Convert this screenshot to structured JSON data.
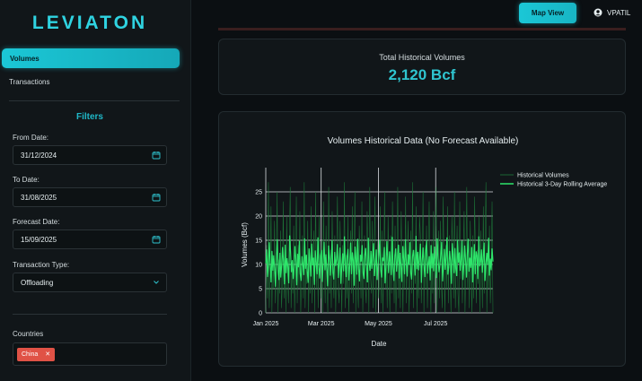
{
  "app": {
    "logo": "LEVIATON"
  },
  "sidebar": {
    "nav": [
      {
        "label": "Volumes",
        "active": true
      },
      {
        "label": "Transactions",
        "active": false
      }
    ],
    "filters_title": "Filters",
    "from_date": {
      "label": "From Date:",
      "value": "31/12/2024"
    },
    "to_date": {
      "label": "To Date:",
      "value": "31/08/2025"
    },
    "forecast_date": {
      "label": "Forecast Date:",
      "value": "15/09/2025"
    },
    "transaction_type": {
      "label": "Transaction Type:",
      "value": "Offloading"
    },
    "countries": {
      "label": "Countries",
      "tags": [
        "China"
      ]
    }
  },
  "header": {
    "map_view_label": "Map View",
    "user": "VPATIL"
  },
  "metric": {
    "title": "Total Historical Volumes",
    "value": "2,120 Bcf"
  },
  "chart_data": {
    "type": "line",
    "title": "Volumes Historical Data (No Forecast Available)",
    "xlabel": "Date",
    "ylabel": "Volumes (Bcf)",
    "x_ticks": [
      "Jan 2025",
      "Mar 2025",
      "May 2025",
      "Jul 2025"
    ],
    "y_ticks": [
      0,
      5,
      10,
      15,
      20,
      25
    ],
    "ylim": [
      0,
      30
    ],
    "x_range": [
      "2025-01-01",
      "2025-08-31"
    ],
    "legend_position": "right",
    "series": [
      {
        "name": "Historical Volumes",
        "color": "#1e7a3a",
        "values": [
          0,
          14,
          3,
          27,
          1,
          9,
          22,
          0,
          12,
          5,
          19,
          2,
          8,
          25,
          0,
          11,
          4,
          17,
          1,
          6,
          23,
          3,
          13,
          0,
          20,
          7,
          2,
          15,
          26,
          1,
          10,
          4,
          18,
          0,
          9,
          24,
          2,
          14,
          5,
          21,
          0,
          8,
          16,
          3,
          27,
          1,
          11,
          6,
          19,
          0,
          13,
          4,
          22,
          2,
          9,
          17,
          0,
          25,
          5,
          12,
          1,
          20,
          7,
          3,
          15,
          0,
          23,
          10,
          2,
          18,
          6,
          0,
          26,
          4,
          13,
          1,
          21,
          8,
          3,
          16,
          0,
          11,
          24,
          5,
          2,
          19,
          9,
          0,
          14,
          6,
          27,
          1,
          12,
          3,
          20,
          0,
          8,
          17,
          4,
          22,
          2,
          10,
          25,
          0,
          15,
          6,
          1,
          18,
          11,
          3,
          23,
          0,
          9,
          16,
          5,
          2,
          21,
          13,
          0,
          26,
          7,
          4,
          19,
          1,
          12,
          24,
          0,
          10,
          15,
          3,
          6,
          22,
          2,
          17,
          0,
          9,
          25,
          5,
          13,
          1,
          20,
          8,
          0,
          16,
          4,
          23,
          11,
          2,
          18,
          0,
          7,
          26,
          3,
          14,
          1,
          21,
          10,
          0,
          15,
          5,
          24,
          2,
          12,
          19,
          0,
          8,
          17,
          4,
          27,
          1,
          13,
          6,
          22,
          0,
          11,
          3,
          20,
          16,
          2,
          9,
          25,
          0,
          14,
          5,
          18,
          1,
          10,
          23,
          7,
          0,
          15,
          4,
          21,
          2,
          12,
          26,
          0,
          9,
          17,
          3,
          19,
          6,
          1,
          24,
          11,
          0,
          14,
          5,
          22,
          2,
          16,
          8,
          0,
          20,
          13,
          3,
          25,
          1,
          10,
          18,
          4,
          0,
          23,
          7,
          15,
          2,
          12,
          21,
          0,
          9,
          26,
          5,
          14,
          1,
          19,
          8,
          0,
          16,
          3,
          24,
          11,
          2,
          13,
          6,
          20,
          0,
          17,
          10,
          1,
          22,
          4,
          15,
          27,
          0,
          12,
          5,
          18,
          2,
          9,
          23,
          0
        ],
        "rolling_avg": [
          10.2,
          13.1,
          7.4,
          9.8,
          14.6,
          10.1,
          6.3,
          12.8,
          8.7,
          11.9,
          9.2,
          5.4,
          11.5,
          15.2,
          8.9,
          6.8,
          12.4,
          7.3,
          9.9,
          13.6,
          10.8,
          5.9,
          14.1,
          8.2,
          11.3,
          9.6,
          6.1,
          16.0,
          12.7,
          8.4,
          10.9,
          7.0,
          9.3,
          13.8,
          11.1,
          5.7,
          12.2,
          9.4,
          14.9,
          8.1,
          6.6,
          11.7,
          10.0,
          7.8,
          15.4,
          9.1,
          12.0,
          8.5,
          6.2,
          13.3,
          10.6,
          7.5,
          14.3,
          9.8,
          11.4,
          5.8,
          12.9,
          10.3,
          8.0,
          15.6,
          9.5,
          7.1,
          11.8,
          13.0,
          6.4,
          10.5,
          14.7,
          8.8,
          12.1,
          9.0,
          5.5,
          13.9,
          11.2,
          7.7,
          10.7,
          15.0,
          8.3,
          6.9,
          12.6,
          9.7,
          11.0,
          14.2,
          7.2,
          10.4,
          13.5,
          6.0,
          9.6,
          12.3,
          8.6,
          15.8,
          10.1,
          7.4,
          11.6,
          13.2,
          6.7,
          9.9,
          14.5,
          8.0,
          12.5,
          10.8,
          5.6,
          13.7,
          11.3,
          7.9,
          15.3,
          9.2,
          6.5,
          12.0,
          10.6,
          14.0,
          8.4,
          7.0,
          11.9,
          13.4,
          9.4,
          6.3,
          15.5,
          10.2,
          8.7,
          12.8,
          9.1,
          11.5,
          14.4,
          7.6,
          10.0,
          13.1,
          6.8,
          9.8,
          12.2,
          15.1,
          8.9,
          7.3,
          11.4,
          10.7,
          13.6,
          6.1,
          9.5,
          14.8,
          11.0,
          8.2,
          12.7,
          10.4,
          7.8,
          15.7,
          9.3,
          6.6,
          11.8,
          13.3,
          8.5,
          10.9,
          14.1,
          7.1,
          12.4,
          9.7,
          6.4,
          13.8,
          11.2,
          8.0,
          15.2,
          10.3,
          7.5,
          12.1,
          9.9,
          14.6,
          8.3,
          6.9,
          11.6,
          13.0,
          10.5,
          7.7,
          15.9,
          9.0,
          12.6,
          8.8,
          11.1,
          14.3,
          6.2,
          10.8,
          13.5,
          9.6,
          7.4,
          12.9,
          15.0,
          8.1,
          10.2,
          11.7,
          6.7,
          14.0,
          9.2,
          12.3,
          8.6,
          13.7,
          10.6,
          7.2,
          15.4,
          11.3,
          8.4,
          9.8,
          12.0,
          14.7,
          6.5,
          10.1,
          13.2,
          8.9,
          11.5,
          15.6,
          7.9,
          9.4,
          12.8,
          10.7,
          6.0,
          14.4,
          11.9,
          8.2,
          13.4,
          9.1,
          7.6,
          15.1,
          10.3,
          12.5,
          8.7,
          11.0,
          14.9,
          6.8,
          9.7,
          13.9,
          10.9,
          7.3,
          12.2,
          15.3,
          8.5,
          11.4,
          9.3,
          13.6,
          6.3,
          10.4,
          14.2,
          8.0,
          12.7,
          11.8,
          7.0,
          15.8,
          9.6,
          10.5,
          13.1,
          8.3,
          11.6,
          14.5,
          6.6,
          10.0,
          12.4,
          9.9,
          15.5,
          7.7,
          11.2,
          8.8,
          13.3,
          10.6
        ]
      }
    ],
    "legend": [
      "Historical Volumes",
      "Historical 3-Day Rolling Average"
    ]
  }
}
